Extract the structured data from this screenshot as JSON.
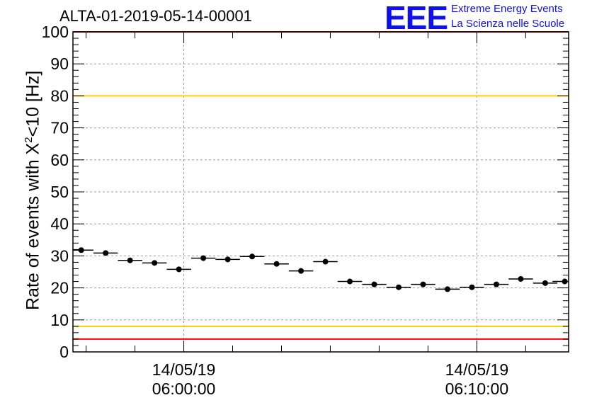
{
  "title": "ALTA-01-2019-05-14-00001",
  "logo": {
    "text": "EEE",
    "line1": "Extreme Energy Events",
    "line2": "La Scienza nelle Scuole"
  },
  "axis": {
    "ylabel_prefix": "Rate of events with X",
    "ylabel_sup": "2",
    "ylabel_suffix": "<10 [Hz]"
  },
  "chart_data": {
    "type": "scatter",
    "title": "ALTA-01-2019-05-14-00001",
    "ylabel": "Rate of events with X^2<10 [Hz]",
    "xlabel": "",
    "ylim": [
      0,
      100
    ],
    "yticks": [
      0,
      10,
      20,
      30,
      40,
      50,
      60,
      70,
      80,
      90,
      100
    ],
    "xlim": [
      "14/05/19 05:56:13",
      "14/05/19 06:13:08"
    ],
    "xticks": [
      {
        "date": "14/05/19",
        "time": "06:00:00"
      },
      {
        "date": "14/05/19",
        "time": "06:10:00"
      }
    ],
    "grid": true,
    "bin_width_seconds": 50,
    "x": [
      "05:56:30",
      "05:57:20",
      "05:58:10",
      "05:59:00",
      "05:59:50",
      "06:00:40",
      "06:01:30",
      "06:02:20",
      "06:03:10",
      "06:04:00",
      "06:04:50",
      "06:05:40",
      "06:06:30",
      "06:07:20",
      "06:08:10",
      "06:09:00",
      "06:09:50",
      "06:10:40",
      "06:11:30",
      "06:12:20",
      "06:13:00"
    ],
    "series": [
      {
        "values": [
          31.8,
          30.9,
          28.6,
          27.8,
          25.8,
          29.3,
          28.9,
          29.8,
          27.5,
          25.3,
          28.2,
          22.0,
          21.1,
          20.2,
          21.1,
          19.6,
          20.2,
          21.1,
          22.8,
          21.5,
          22.0
        ],
        "color": "#000000"
      }
    ],
    "reference_lines": [
      {
        "y": 80,
        "color": "#ffcc00"
      },
      {
        "y": 8,
        "color": "#ffcc00"
      },
      {
        "y": 100,
        "color": "#ff0000"
      },
      {
        "y": 4,
        "color": "#ff0000"
      }
    ]
  }
}
